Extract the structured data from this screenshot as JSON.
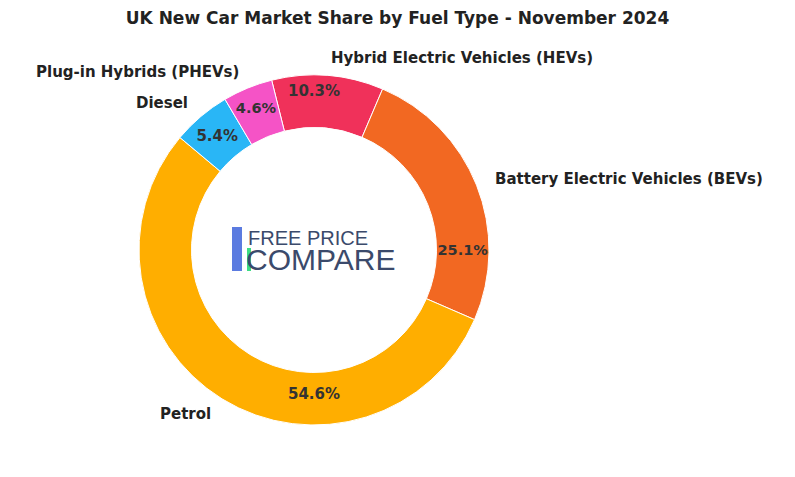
{
  "chart_data": {
    "type": "pie",
    "title": "UK New Car Market Share by Fuel Type - November 2024",
    "categories": [
      "Hybrid Electric Vehicles (HEVs)",
      "Battery Electric Vehicles (BEVs)",
      "Petrol",
      "Diesel",
      "Plug-in Hybrids (PHEVs)"
    ],
    "values": [
      10.3,
      25.1,
      54.6,
      5.4,
      4.6
    ],
    "value_labels": [
      "10.3%",
      "25.1%",
      "54.6%",
      "5.4%",
      "4.6%"
    ],
    "colors": [
      "#f0315a",
      "#f26822",
      "#ffae00",
      "#29b6f6",
      "#f553c6"
    ],
    "data_labels": true,
    "annotations": [
      "FREE PRICE",
      "COMPARE"
    ]
  }
}
